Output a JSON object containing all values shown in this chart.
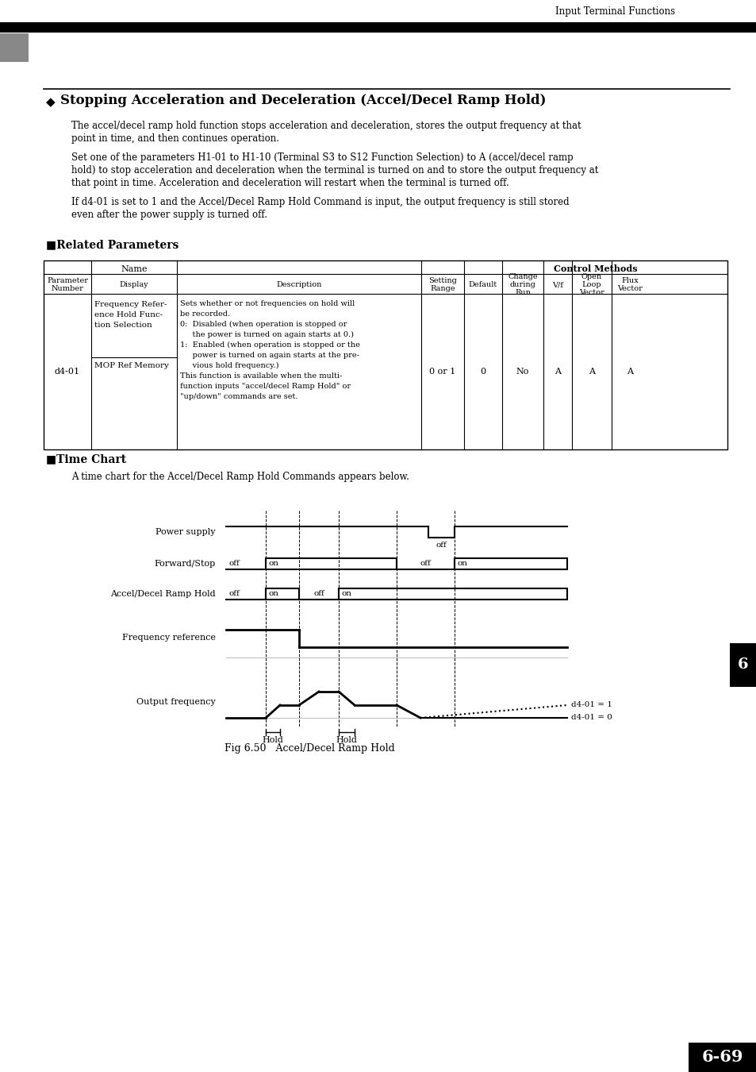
{
  "page_title": "Input Terminal Functions",
  "section_title": "Stopping Acceleration and Deceleration (Accel/Decel Ramp Hold)",
  "related_params_title": "Related Parameters",
  "time_chart_title": "Time Chart",
  "time_chart_desc": "A time chart for the Accel/Decel Ramp Hold Commands appears below.",
  "fig_caption": "Fig 6.50   Accel/Decel Ramp Hold",
  "page_number": "6-69",
  "bg_color": "#ffffff",
  "text_color": "#000000",
  "para1_lines": [
    "The accel/decel ramp hold function stops acceleration and deceleration, stores the output frequency at that",
    "point in time, and then continues operation."
  ],
  "para2_lines": [
    "Set one of the parameters H1-01 to H1-10 (Terminal S3 to S12 Function Selection) to A (accel/decel ramp",
    "hold) to stop acceleration and deceleration when the terminal is turned on and to store the output frequency at",
    "that point in time. Acceleration and deceleration will restart when the terminal is turned off."
  ],
  "para3_lines": [
    "If d4-01 is set to 1 and the Accel/Decel Ramp Hold Command is input, the output frequency is still stored",
    "even after the power supply is turned off."
  ],
  "table": {
    "param_num": "d4-01",
    "name_top_lines": [
      "Frequency Refer-",
      "ence Hold Func-",
      "tion Selection"
    ],
    "name_bottom": "MOP Ref Memory",
    "desc_lines": [
      "Sets whether or not frequencies on hold will",
      "be recorded.",
      "0:  Disabled (when operation is stopped or",
      "     the power is turned on again starts at 0.)",
      "1:  Enabled (when operation is stopped or the",
      "     power is turned on again starts at the pre-",
      "     vious hold frequency.)",
      "This function is available when the multi-",
      "function inputs \"accel/decel Ramp Hold\" or",
      "\"up/down\" commands are set."
    ],
    "setting_range": "0 or 1",
    "default": "0",
    "change_run": "No",
    "vf": "A",
    "open_loop": "A",
    "flux": "A"
  }
}
